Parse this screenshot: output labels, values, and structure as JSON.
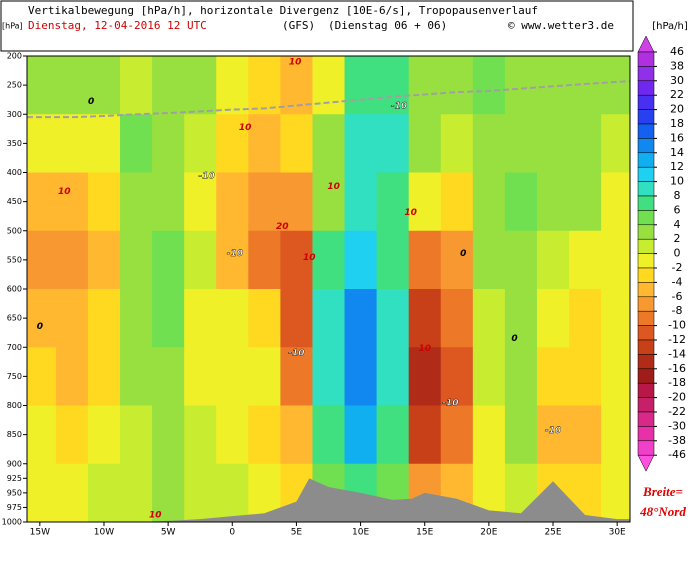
{
  "chart_data": {
    "type": "cross-section",
    "title": "Vertikalbewegung [hPa/h], horizontale Divergenz [10E-6/s], Tropopausenverlauf",
    "date": "Dienstag, 12-04-2016  12 UTC",
    "model": "(GFS)",
    "run": "(Dienstag 06 + 06)",
    "source": "© www.wetter3.de",
    "y_label": "[hPa]",
    "colorbar_label": "[hPa/h]",
    "latitude_label": "Breite=",
    "latitude": "48°Nord",
    "xlim": [
      -16,
      31
    ],
    "ylim": [
      1000,
      200
    ],
    "xticks": [
      {
        "value": -15,
        "label": "15W"
      },
      {
        "value": -10,
        "label": "10W"
      },
      {
        "value": -5,
        "label": "5W"
      },
      0,
      {
        "value": 5,
        "label": "5E"
      },
      {
        "value": 10,
        "label": "10E"
      },
      {
        "value": 15,
        "label": "15E"
      },
      {
        "value": 20,
        "label": "20E"
      },
      {
        "value": 25,
        "label": "25E"
      },
      {
        "value": 30,
        "label": "30E"
      }
    ],
    "yticks": [
      200,
      250,
      300,
      350,
      400,
      450,
      500,
      550,
      600,
      650,
      700,
      750,
      800,
      850,
      900,
      925,
      950,
      975,
      1000
    ],
    "field": {
      "x": [
        -15,
        -12.5,
        -10,
        -7.5,
        -5,
        -2.5,
        0,
        2.5,
        5,
        7.5,
        10,
        12.5,
        15,
        17.5,
        20,
        22.5,
        25,
        27.5,
        30
      ],
      "levels": [
        250,
        350,
        450,
        550,
        650,
        750,
        850,
        950
      ],
      "values": [
        [
          2,
          2,
          2,
          0,
          2,
          2,
          -2,
          -4,
          -6,
          -2,
          6,
          6,
          2,
          2,
          4,
          2,
          2,
          2,
          2
        ],
        [
          -2,
          -2,
          -2,
          4,
          2,
          0,
          -4,
          -6,
          -4,
          2,
          8,
          8,
          2,
          0,
          2,
          2,
          2,
          2,
          0
        ],
        [
          -6,
          -6,
          -4,
          2,
          2,
          -2,
          -6,
          -8,
          -8,
          2,
          8,
          6,
          -2,
          -4,
          2,
          4,
          2,
          2,
          -2
        ],
        [
          -8,
          -8,
          -6,
          2,
          4,
          0,
          -6,
          -10,
          -12,
          6,
          10,
          6,
          -10,
          -8,
          2,
          2,
          0,
          -2,
          -2
        ],
        [
          -6,
          -6,
          -4,
          2,
          4,
          -2,
          -2,
          -4,
          -12,
          8,
          14,
          8,
          -14,
          -10,
          0,
          2,
          -2,
          -4,
          -2
        ],
        [
          -4,
          -6,
          -4,
          2,
          2,
          -2,
          -2,
          -2,
          -10,
          8,
          14,
          8,
          -16,
          -12,
          0,
          2,
          -4,
          -4,
          -2
        ],
        [
          -2,
          -4,
          -2,
          0,
          2,
          0,
          -2,
          -4,
          -6,
          6,
          12,
          6,
          -14,
          -10,
          -2,
          2,
          -6,
          -6,
          -2
        ],
        [
          -2,
          -2,
          0,
          0,
          2,
          0,
          0,
          -2,
          -4,
          4,
          6,
          4,
          -8,
          -6,
          -2,
          0,
          -4,
          -4,
          -2
        ]
      ]
    },
    "terrain": {
      "color": "#8c8c8c",
      "x": [
        -16,
        -15,
        -12.5,
        -10,
        -7.5,
        -5,
        -2.5,
        0,
        2.5,
        5,
        6,
        7.5,
        10,
        12.5,
        14,
        15,
        17.5,
        20,
        22.5,
        25,
        27.5,
        30,
        31
      ],
      "values": [
        1000,
        1000,
        1000,
        1000,
        1000,
        998,
        995,
        990,
        985,
        965,
        925,
        940,
        950,
        962,
        960,
        950,
        960,
        980,
        985,
        930,
        988,
        995,
        995
      ]
    },
    "tropopause": {
      "color": "#a0a0a0",
      "x": [
        -16,
        -12.5,
        -10,
        -7.5,
        -5,
        -2.5,
        0,
        2.5,
        5,
        7.5,
        10,
        12.5,
        15,
        17.5,
        20,
        22.5,
        25,
        27.5,
        31
      ],
      "values": [
        305,
        305,
        303,
        300,
        298,
        295,
        292,
        290,
        285,
        280,
        275,
        270,
        266,
        262,
        260,
        256,
        252,
        248,
        243
      ]
    },
    "contour_labels": [
      {
        "label": "10",
        "x": -13.1,
        "y": 433
      },
      {
        "label": "10",
        "x": 4.9,
        "y": 210
      },
      {
        "label": "10",
        "x": 1,
        "y": 323
      },
      {
        "label": "10",
        "x": 7.9,
        "y": 424
      },
      {
        "label": "10",
        "x": 13.9,
        "y": 469
      },
      {
        "label": "20",
        "x": 3.9,
        "y": 493
      },
      {
        "label": "10",
        "x": 6,
        "y": 546
      },
      {
        "label": "10",
        "x": 15,
        "y": 702
      },
      {
        "label": "10",
        "x": -6,
        "y": 988
      },
      {
        "label": "-10",
        "x": 13,
        "y": 286
      },
      {
        "label": "-10",
        "x": -2,
        "y": 406
      },
      {
        "label": "-10",
        "x": 0.2,
        "y": 539
      },
      {
        "label": "-10",
        "x": 5,
        "y": 710
      },
      {
        "label": "-10",
        "x": 17,
        "y": 796
      },
      {
        "label": "-10",
        "x": 25,
        "y": 843
      },
      {
        "label": "0",
        "x": -11,
        "y": 278
      },
      {
        "label": "0",
        "x": 18,
        "y": 539
      },
      {
        "label": "0",
        "x": 22,
        "y": 685
      },
      {
        "label": "0",
        "x": -15,
        "y": 664
      }
    ],
    "colorbar": {
      "levels": [
        46,
        38,
        30,
        22,
        20,
        18,
        16,
        14,
        12,
        10,
        8,
        6,
        4,
        2,
        0,
        -2,
        -4,
        -6,
        -8,
        -10,
        -12,
        -14,
        -16,
        -18,
        -20,
        -22,
        -30,
        -38,
        -46
      ],
      "colors": [
        "#b030e0",
        "#9030e8",
        "#7028f0",
        "#4830f0",
        "#2840f0",
        "#1460f0",
        "#1088f0",
        "#10b0f0",
        "#20d0f0",
        "#30e0c0",
        "#40e080",
        "#70e050",
        "#98e040",
        "#c8ec30",
        "#f0f028",
        "#ffd820",
        "#ffb830",
        "#f89830",
        "#ec7828",
        "#dc5820",
        "#c84018",
        "#b02c18",
        "#a01c18",
        "#b81848",
        "#c82068",
        "#d82888",
        "#e830a8",
        "#f040c8"
      ],
      "over_color": "#d040e8",
      "under_color": "#ff50e0"
    }
  }
}
